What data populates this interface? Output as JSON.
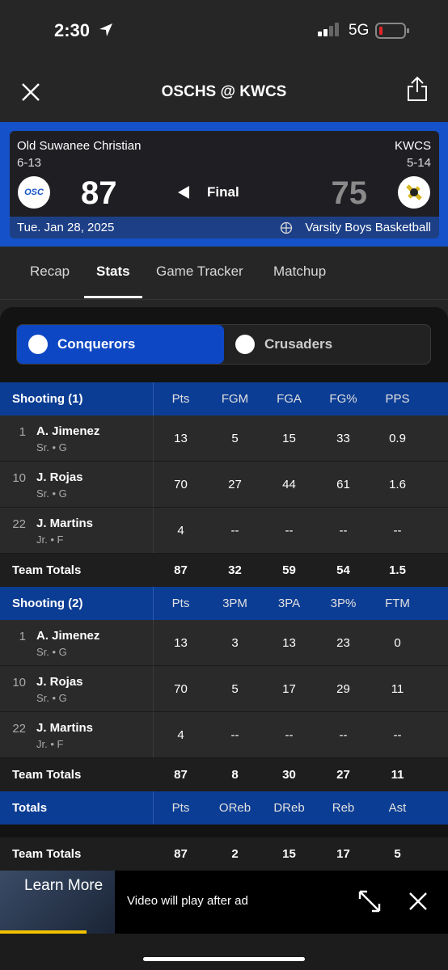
{
  "status_bar": {
    "time": "2:30",
    "network": "5G"
  },
  "header": {
    "title": "OSCHS @ KWCS"
  },
  "scoreboard": {
    "home": {
      "name": "Old Suwanee Christian",
      "record": "6-13",
      "score": 87,
      "logo": "OSC"
    },
    "away": {
      "name": "KWCS",
      "record": "5-14",
      "score": 75
    },
    "status": "Final",
    "date": "Tue. Jan 28, 2025",
    "sport": "Varsity Boys Basketball"
  },
  "tabs": {
    "items": [
      "Recap",
      "Stats",
      "Game Tracker",
      "Matchup"
    ],
    "active": 1
  },
  "team_toggle": {
    "teams": [
      "Conquerors",
      "Crusaders"
    ],
    "active": 0
  },
  "tables": [
    {
      "title": "Shooting (1)",
      "columns": [
        "Pts",
        "FGM",
        "FGA",
        "FG%",
        "PPS"
      ],
      "rows": [
        {
          "number": 1,
          "name": "A. Jimenez",
          "info": "Sr. • G",
          "stats": [
            13,
            5,
            15,
            33,
            0.9
          ]
        },
        {
          "number": 10,
          "name": "J. Rojas",
          "info": "Sr. • G",
          "stats": [
            70,
            27,
            44,
            61,
            1.6
          ]
        },
        {
          "number": 22,
          "name": "J. Martins",
          "info": "Jr. • F",
          "stats": [
            4,
            "--",
            "--",
            "--",
            "--"
          ]
        }
      ],
      "totals": {
        "label": "Team Totals",
        "stats": [
          87,
          32,
          59,
          54,
          1.5
        ]
      }
    },
    {
      "title": "Shooting (2)",
      "columns": [
        "Pts",
        "3PM",
        "3PA",
        "3P%",
        "FTM"
      ],
      "rows": [
        {
          "number": 1,
          "name": "A. Jimenez",
          "info": "Sr. • G",
          "stats": [
            13,
            3,
            13,
            23,
            0
          ]
        },
        {
          "number": 10,
          "name": "J. Rojas",
          "info": "Sr. • G",
          "stats": [
            70,
            5,
            17,
            29,
            11
          ]
        },
        {
          "number": 22,
          "name": "J. Martins",
          "info": "Jr. • F",
          "stats": [
            4,
            "--",
            "--",
            "--",
            "--"
          ]
        }
      ],
      "totals": {
        "label": "Team Totals",
        "stats": [
          87,
          8,
          30,
          27,
          11
        ]
      }
    },
    {
      "title": "Totals",
      "columns": [
        "Pts",
        "OReb",
        "DReb",
        "Reb",
        "Ast"
      ],
      "rows": [],
      "totals": {
        "label": "Team Totals",
        "stats": [
          87,
          2,
          15,
          17,
          5
        ]
      }
    }
  ],
  "ad": {
    "cta": "Learn More",
    "message": "Video will play after ad"
  }
}
